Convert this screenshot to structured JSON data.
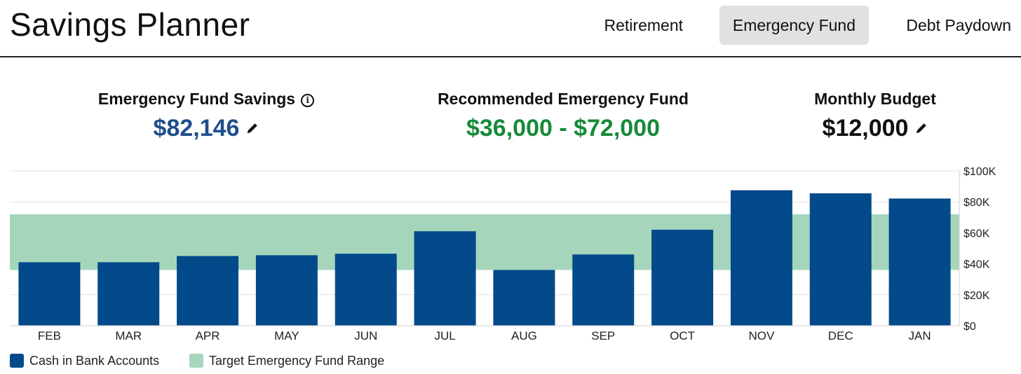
{
  "app": {
    "title": "Savings Planner"
  },
  "tabs": [
    {
      "label": "Retirement",
      "active": false
    },
    {
      "label": "Emergency Fund",
      "active": true
    },
    {
      "label": "Debt Paydown",
      "active": false
    }
  ],
  "stats": {
    "savings": {
      "label": "Emergency Fund Savings",
      "value": "$82,146",
      "color": "#1e4e8c"
    },
    "recommended": {
      "label": "Recommended Emergency Fund",
      "value": "$36,000 - $72,000",
      "color": "#178a3a"
    },
    "budget": {
      "label": "Monthly Budget",
      "value": "$12,000",
      "color": "#111111"
    }
  },
  "icons": {
    "info": "info-circle-icon",
    "edit": "pencil-icon"
  },
  "colors": {
    "bar": "#024a8a",
    "target_range": "#a5d6bb",
    "savings_value": "#1e4e8c",
    "recommended_value": "#178a3a"
  },
  "chart_data": {
    "type": "bar",
    "categories": [
      "FEB",
      "MAR",
      "APR",
      "MAY",
      "JUN",
      "JUL",
      "AUG",
      "SEP",
      "OCT",
      "NOV",
      "DEC",
      "JAN"
    ],
    "series": [
      {
        "name": "Cash in Bank Accounts",
        "values": [
          41000,
          41000,
          45000,
          45500,
          46500,
          61000,
          36000,
          46000,
          62000,
          87500,
          85500,
          82146
        ]
      }
    ],
    "target_range": {
      "name": "Target Emergency Fund Range",
      "min": 36000,
      "max": 72000
    },
    "ylim": [
      0,
      100000
    ],
    "yticks": [
      0,
      20000,
      40000,
      60000,
      80000,
      100000
    ],
    "ytick_labels": [
      "$0",
      "$20K",
      "$40K",
      "$60K",
      "$80K",
      "$100K"
    ],
    "y_axis_position": "right",
    "grid": true,
    "legend_position": "bottom-left"
  },
  "legend": [
    {
      "label": "Cash in Bank Accounts",
      "color": "#024a8a"
    },
    {
      "label": "Target Emergency Fund Range",
      "color": "#a5d6bb"
    }
  ]
}
